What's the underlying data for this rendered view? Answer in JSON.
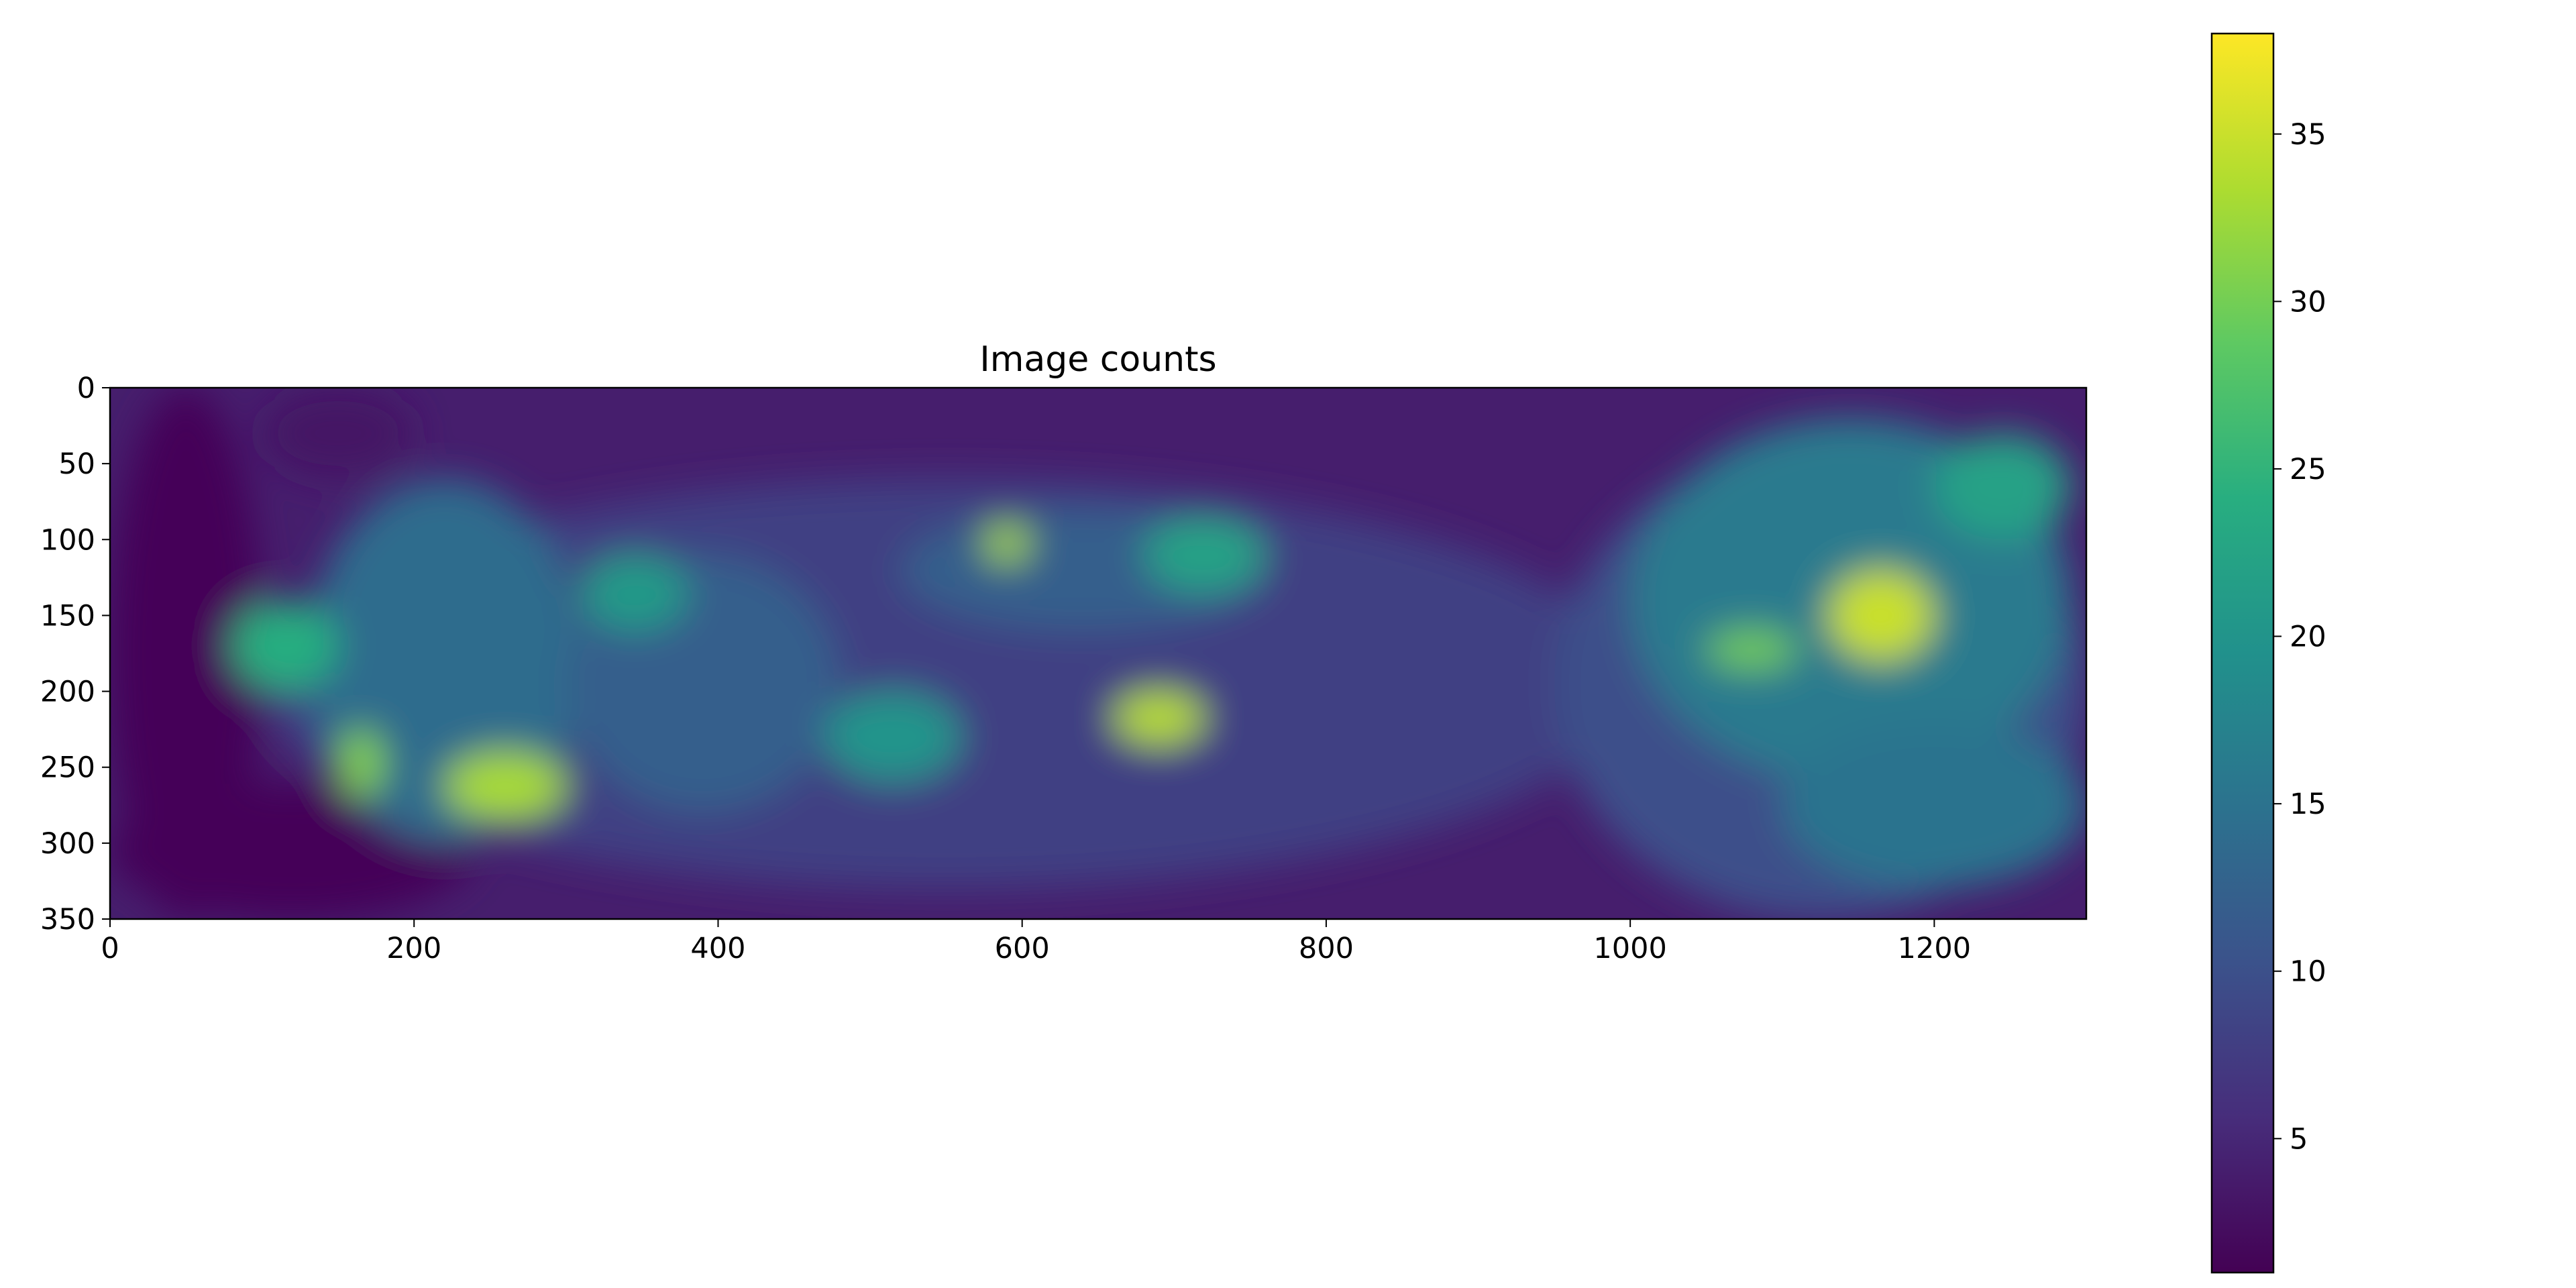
{
  "chart_data": [
    {
      "type": "heatmap",
      "title": "Image counts",
      "xlabel": "",
      "ylabel": "",
      "xlim": [
        0,
        1300
      ],
      "ylim": [
        350,
        0
      ],
      "x_ticks": [
        0,
        200,
        400,
        600,
        800,
        1000,
        1200
      ],
      "y_ticks": [
        0,
        50,
        100,
        150,
        200,
        250,
        300,
        350
      ],
      "grid": false,
      "colormap": "viridis",
      "background_value": 4,
      "value_range": [
        1,
        38
      ],
      "regions": [
        {
          "x": [
            0,
            100
          ],
          "y": [
            0,
            350
          ],
          "value": 1.5
        },
        {
          "x": [
            0,
            240
          ],
          "y": [
            260,
            350
          ],
          "value": 1.5
        },
        {
          "x": [
            100,
            200
          ],
          "y": [
            0,
            60
          ],
          "value": 3
        },
        {
          "x": [
            100,
            1000
          ],
          "y": [
            60,
            330
          ],
          "value": 8
        },
        {
          "x": [
            950,
            1300
          ],
          "y": [
            40,
            350
          ],
          "value": 10
        },
        {
          "x": [
            130,
            310
          ],
          "y": [
            60,
            300
          ],
          "value": 14
        },
        {
          "x": [
            1000,
            1290
          ],
          "y": [
            20,
            260
          ],
          "value": 16
        },
        {
          "x": [
            1100,
            1300
          ],
          "y": [
            220,
            330
          ],
          "value": 15
        },
        {
          "x": [
            300,
            480
          ],
          "y": [
            110,
            280
          ],
          "value": 12
        },
        {
          "x": [
            520,
            760
          ],
          "y": [
            80,
            160
          ],
          "value": 12
        },
        {
          "x": [
            470,
            560
          ],
          "y": [
            200,
            260
          ],
          "value": 20
        },
        {
          "x": [
            80,
            150
          ],
          "y": [
            140,
            200
          ],
          "value": 24
        },
        {
          "x": [
            310,
            380
          ],
          "y": [
            110,
            160
          ],
          "value": 21
        },
        {
          "x": [
            150,
            180
          ],
          "y": [
            225,
            270
          ],
          "value": 31
        },
        {
          "x": [
            220,
            300
          ],
          "y": [
            240,
            285
          ],
          "value": 33
        },
        {
          "x": [
            575,
            605
          ],
          "y": [
            90,
            115
          ],
          "value": 33
        },
        {
          "x": [
            660,
            720
          ],
          "y": [
            200,
            235
          ],
          "value": 34
        },
        {
          "x": [
            680,
            760
          ],
          "y": [
            85,
            135
          ],
          "value": 22
        },
        {
          "x": [
            1050,
            1110
          ],
          "y": [
            160,
            185
          ],
          "value": 30
        },
        {
          "x": [
            1130,
            1200
          ],
          "y": [
            120,
            180
          ],
          "value": 35
        },
        {
          "x": [
            1200,
            1290
          ],
          "y": [
            30,
            100
          ],
          "value": 22
        }
      ]
    },
    {
      "type": "colorbar",
      "colormap": "viridis",
      "ylim": [
        1,
        38
      ],
      "ticks": [
        5,
        10,
        15,
        20,
        25,
        30,
        35
      ]
    }
  ]
}
